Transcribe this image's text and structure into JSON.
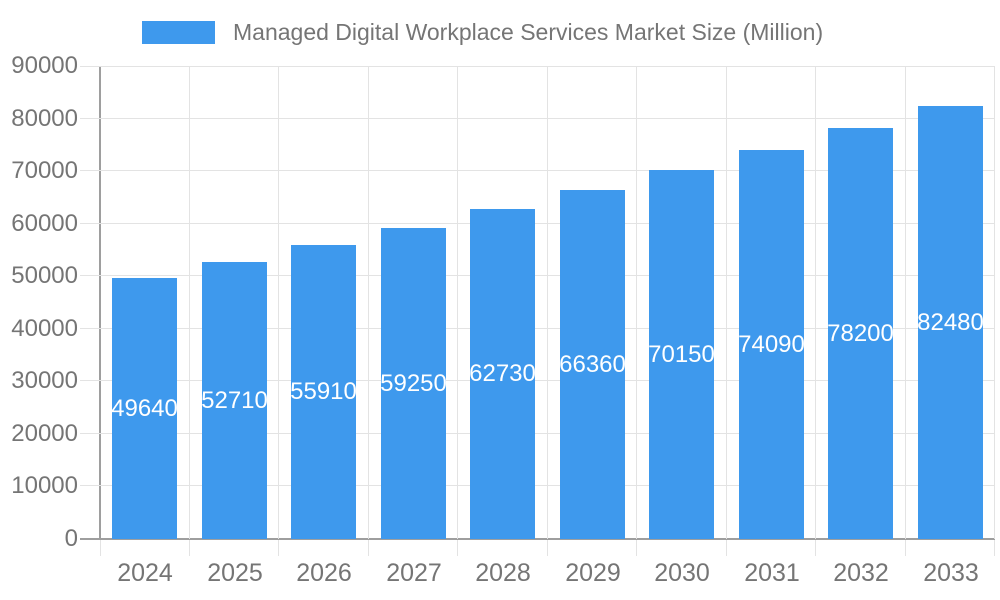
{
  "colors": {
    "bar": "#3E99ED",
    "text": "#757575",
    "axis": "#9e9e9e",
    "gridline": "#e3e3e3",
    "value_label": "#ffffff",
    "background": "#ffffff"
  },
  "legend": {
    "label": "Managed Digital Workplace Services Market Size (Million)",
    "position": "top"
  },
  "chart_data": {
    "type": "bar",
    "title": "Managed Digital Workplace Services Market Size (Million)",
    "categories": [
      "2024",
      "2025",
      "2026",
      "2027",
      "2028",
      "2029",
      "2030",
      "2031",
      "2032",
      "2033"
    ],
    "series": [
      {
        "name": "Managed Digital Workplace Services Market Size (Million)",
        "values": [
          49640,
          52710,
          55910,
          59250,
          62730,
          66360,
          70150,
          74090,
          78200,
          82480
        ]
      }
    ],
    "value_labels_shown": true,
    "value_label_position": "center-inside-bar",
    "xlabel": "",
    "ylabel": "",
    "ylim": [
      0,
      90000
    ],
    "ytick_step": 10000,
    "yticks": [
      0,
      10000,
      20000,
      30000,
      40000,
      50000,
      60000,
      70000,
      80000,
      90000
    ],
    "grid": true,
    "legend_position": "top"
  }
}
